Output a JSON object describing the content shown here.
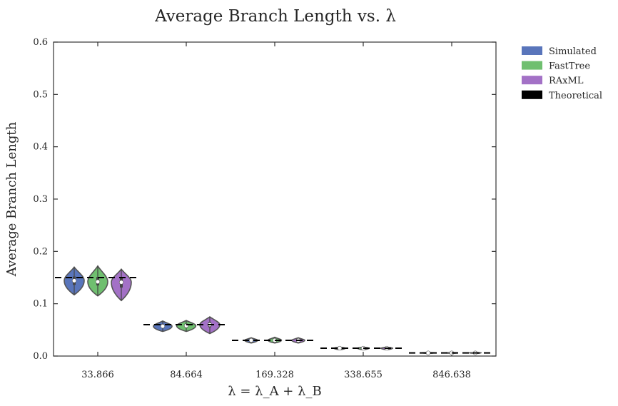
{
  "chart_data": {
    "type": "violin",
    "title": "Average Branch Length vs. λ",
    "xlabel": "λ = λ_A + λ_B",
    "ylabel": "Average Branch Length",
    "categories": [
      "33.866",
      "84.664",
      "169.328",
      "338.655",
      "846.638"
    ],
    "ylim": [
      0.0,
      0.6
    ],
    "yticks": [
      "0.0",
      "0.1",
      "0.2",
      "0.3",
      "0.4",
      "0.5",
      "0.6"
    ],
    "grid": false,
    "legend_position": "outside-top-right",
    "series": [
      {
        "name": "Simulated",
        "color": "#5975bb",
        "stats": [
          {
            "min": 0.117,
            "q1": 0.136,
            "median": 0.144,
            "q3": 0.152,
            "max": 0.17
          },
          {
            "min": 0.047,
            "q1": 0.054,
            "median": 0.057,
            "q3": 0.061,
            "max": 0.067
          },
          {
            "min": 0.025,
            "q1": 0.028,
            "median": 0.03,
            "q3": 0.032,
            "max": 0.035
          },
          {
            "min": 0.012,
            "q1": 0.014,
            "median": 0.015,
            "q3": 0.016,
            "max": 0.017
          },
          {
            "min": 0.005,
            "q1": 0.0058,
            "median": 0.006,
            "q3": 0.0062,
            "max": 0.007
          }
        ]
      },
      {
        "name": "FastTree",
        "color": "#6fbf6f",
        "stats": [
          {
            "min": 0.115,
            "q1": 0.135,
            "median": 0.142,
            "q3": 0.151,
            "max": 0.172
          },
          {
            "min": 0.047,
            "q1": 0.054,
            "median": 0.058,
            "q3": 0.062,
            "max": 0.068
          },
          {
            "min": 0.025,
            "q1": 0.028,
            "median": 0.03,
            "q3": 0.032,
            "max": 0.036
          },
          {
            "min": 0.012,
            "q1": 0.014,
            "median": 0.015,
            "q3": 0.016,
            "max": 0.017
          },
          {
            "min": 0.005,
            "q1": 0.0058,
            "median": 0.006,
            "q3": 0.0062,
            "max": 0.007
          }
        ]
      },
      {
        "name": "RAxML",
        "color": "#a371c6",
        "stats": [
          {
            "min": 0.106,
            "q1": 0.131,
            "median": 0.141,
            "q3": 0.151,
            "max": 0.166
          },
          {
            "min": 0.043,
            "q1": 0.055,
            "median": 0.06,
            "q3": 0.065,
            "max": 0.075
          },
          {
            "min": 0.025,
            "q1": 0.028,
            "median": 0.03,
            "q3": 0.032,
            "max": 0.035
          },
          {
            "min": 0.012,
            "q1": 0.014,
            "median": 0.015,
            "q3": 0.016,
            "max": 0.017
          },
          {
            "min": 0.005,
            "q1": 0.0058,
            "median": 0.006,
            "q3": 0.0062,
            "max": 0.007
          }
        ]
      }
    ],
    "theoretical": {
      "name": "Theoretical",
      "color": "#000000",
      "values": [
        0.15,
        0.06,
        0.03,
        0.015,
        0.006
      ]
    }
  }
}
